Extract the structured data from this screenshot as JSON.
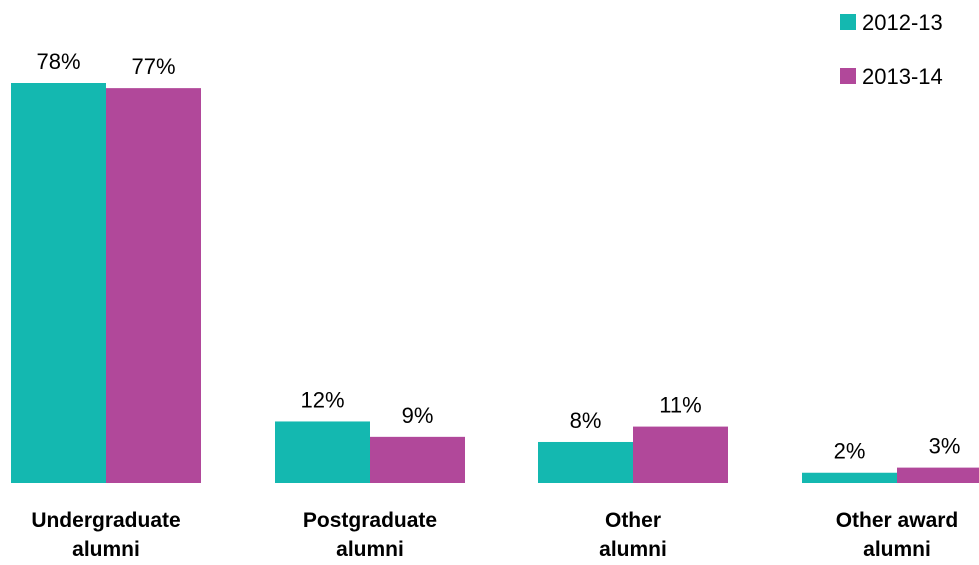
{
  "chart_data": {
    "type": "bar",
    "title": "",
    "xlabel": "",
    "ylabel": "",
    "categories": [
      [
        "Undergraduate",
        "alumni"
      ],
      [
        "Postgraduate",
        "alumni"
      ],
      [
        "Other",
        "alumni"
      ],
      [
        "Other award",
        "alumni"
      ]
    ],
    "series": [
      {
        "name": "2012-13",
        "color": "#14b8b0",
        "values": [
          78,
          12,
          8,
          2
        ],
        "labels": [
          "78%",
          "12%",
          "8%",
          "2%"
        ]
      },
      {
        "name": "2013-14",
        "color": "#b1489a",
        "values": [
          77,
          9,
          11,
          3
        ],
        "labels": [
          "77%",
          "9%",
          "11%",
          "3%"
        ]
      }
    ],
    "ylim": [
      0,
      78
    ],
    "unit": "%",
    "grid": false,
    "legend_position": "top-right"
  }
}
